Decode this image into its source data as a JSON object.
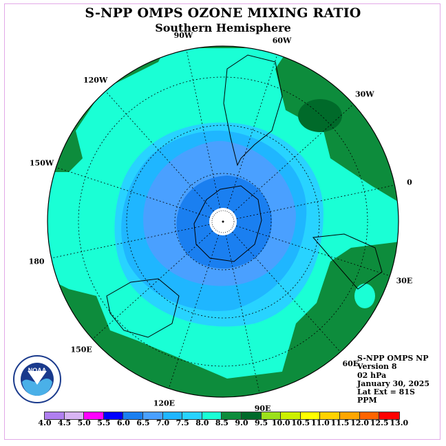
{
  "title": "S-NPP OMPS OZONE MIXING RATIO",
  "subtitle": "Southern Hemisphere",
  "info": {
    "product": "S-NPP OMPS NP",
    "version": "Version 8",
    "level": "02 hPa",
    "date": "January 30, 2025",
    "lat_ext": "Lat Ext = 81S",
    "units": "PPM"
  },
  "logo_text": "NOAA",
  "longitude_labels": [
    "90W",
    "60W",
    "30W",
    "0",
    "30E",
    "60E",
    "90E",
    "120E",
    "150E",
    "180",
    "150W",
    "120W"
  ],
  "colorbar": {
    "ticks": [
      "4.0",
      "4.5",
      "5.0",
      "5.5",
      "6.0",
      "6.5",
      "7.0",
      "7.5",
      "8.0",
      "8.5",
      "9.0",
      "9.5",
      "10.0",
      "10.5",
      "11.0",
      "11.5",
      "12.0",
      "12.5",
      "13.0"
    ],
    "colors": [
      "#b07ff0",
      "#d8b4f4",
      "#ff00ff",
      "#0000ff",
      "#1a7ff0",
      "#4aa0ff",
      "#1fb6ff",
      "#28d3ff",
      "#1affd5",
      "#0d8c3c",
      "#006a2a",
      "#9be01a",
      "#ccf000",
      "#ffff00",
      "#ffd200",
      "#ffa600",
      "#ff6400",
      "#ff0000",
      "#7f4b3b"
    ]
  },
  "chart_data": {
    "type": "heatmap",
    "projection": "south polar stereographic",
    "variable": "ozone mixing ratio",
    "units": "PPM",
    "pressure_level": "02 hPa",
    "date": "January 30, 2025",
    "lat_extent": "81S",
    "levels": [
      4.0,
      4.5,
      5.0,
      5.5,
      6.0,
      6.5,
      7.0,
      7.5,
      8.0,
      8.5,
      9.0,
      9.5,
      10.0,
      10.5,
      11.0,
      11.5,
      12.0,
      12.5,
      13.0
    ],
    "regions": [
      {
        "range": [
          6.0,
          6.5
        ],
        "location": "over Antarctica, near pole"
      },
      {
        "range": [
          6.5,
          7.0
        ],
        "location": "around Antarctic coast"
      },
      {
        "range": [
          7.0,
          7.5
        ],
        "location": "ring around Antarctica"
      },
      {
        "range": [
          7.5,
          8.0
        ],
        "location": "outer ring"
      },
      {
        "range": [
          8.0,
          8.5
        ],
        "location": "mid-latitudes"
      },
      {
        "range": [
          8.5,
          9.0
        ],
        "location": "outer edge / lower latitudes"
      },
      {
        "range": [
          9.0,
          9.5
        ],
        "location": "small patches near 30W"
      }
    ]
  }
}
